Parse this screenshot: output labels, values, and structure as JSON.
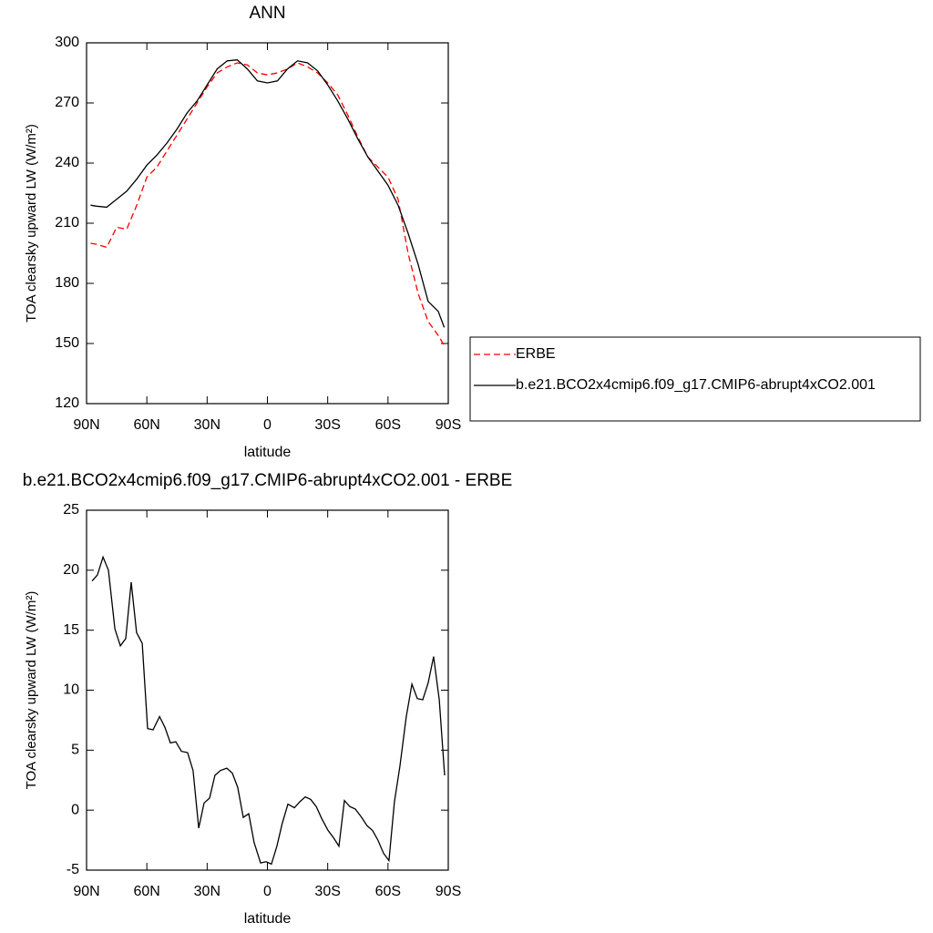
{
  "chart_data": [
    {
      "type": "line",
      "title": "ANN",
      "xlabel": "latitude",
      "ylabel": "TOA clearsky upward LW (W/m²)",
      "x": [
        88,
        85,
        80,
        75,
        70,
        65,
        60,
        55,
        50,
        45,
        40,
        35,
        30,
        25,
        20,
        15,
        10,
        5,
        0,
        -5,
        -10,
        -15,
        -20,
        -25,
        -30,
        -35,
        -40,
        -45,
        -50,
        -55,
        -60,
        -65,
        -70,
        -75,
        -80,
        -85,
        -88
      ],
      "series": [
        {
          "name": "ERBE",
          "color": "#ff0000",
          "style": "dashed",
          "values": [
            200,
            199.5,
            198,
            208,
            207,
            219,
            233,
            238,
            246,
            254,
            262,
            270,
            278,
            285,
            288,
            290,
            289,
            285,
            284,
            285,
            287,
            290,
            288,
            285,
            280,
            274,
            264,
            253,
            243,
            238,
            233,
            222,
            195,
            175,
            161,
            154,
            149
          ]
        },
        {
          "name": "b.e21.BCO2x4cmip6.f09_g17.CMIP6-abrupt4xCO2.001",
          "color": "#000000",
          "style": "solid",
          "values": [
            219,
            218.5,
            218,
            222,
            226,
            232,
            239,
            244,
            250,
            257,
            265,
            271,
            279,
            287,
            291,
            291.5,
            287,
            281,
            280,
            281,
            287,
            291,
            290,
            286,
            279,
            271,
            262,
            252,
            243,
            236,
            229,
            219,
            205,
            189.5,
            171,
            166,
            158
          ]
        }
      ],
      "xlim": [
        90,
        -90
      ],
      "xticks": [
        {
          "value": 90,
          "label": "90N"
        },
        {
          "value": 60,
          "label": "60N"
        },
        {
          "value": 30,
          "label": "30N"
        },
        0,
        {
          "value": -30,
          "label": "30S"
        },
        {
          "value": -60,
          "label": "60S"
        },
        {
          "value": -90,
          "label": "90S"
        }
      ],
      "ylim": [
        120,
        300
      ],
      "yticks": [
        120,
        150,
        180,
        210,
        240,
        270,
        300
      ],
      "legend": "right"
    },
    {
      "type": "line",
      "title": "b.e21.BCO2x4cmip6.f09_g17.CMIP6-abrupt4xCO2.001 - ERBE",
      "xlabel": "latitude",
      "ylabel": "TOA clearsky upward LW (W/m²)",
      "x": [
        87.3,
        84.6,
        81.8,
        79.1,
        75.9,
        73.2,
        70.5,
        67.8,
        65.1,
        62.3,
        59.6,
        56.9,
        53.7,
        51.0,
        48.3,
        45.6,
        42.8,
        39.7,
        37.0,
        34.2,
        31.5,
        28.8,
        26.1,
        23.4,
        20.2,
        17.5,
        14.8,
        12.0,
        9.3,
        6.6,
        3.4,
        0.7,
        -2.0,
        -4.7,
        -7.4,
        -10.2,
        -13.4,
        -16.1,
        -18.8,
        -21.5,
        -24.3,
        -27.0,
        -30.2,
        -32.9,
        -35.6,
        -38.3,
        -41.0,
        -43.7,
        -46.9,
        -49.6,
        -52.3,
        -55.0,
        -57.8,
        -60.5,
        -63.2,
        -65.9,
        -69.1,
        -71.9,
        -74.6,
        -77.3,
        -80.0,
        -82.7,
        -85.5,
        -88.2
      ],
      "values": [
        19.1,
        19.6,
        21.1,
        20.0,
        15.1,
        13.7,
        14.3,
        19.0,
        14.8,
        13.9,
        6.8,
        6.7,
        7.8,
        6.9,
        5.6,
        5.7,
        4.9,
        4.8,
        3.3,
        -1.5,
        0.6,
        1.0,
        2.9,
        3.3,
        3.5,
        3.1,
        1.9,
        -0.6,
        -0.3,
        -2.7,
        -4.4,
        -4.3,
        -4.5,
        -3.0,
        -1.1,
        0.5,
        0.2,
        0.7,
        1.1,
        0.9,
        0.3,
        -0.7,
        -1.7,
        -2.3,
        -3.0,
        0.8,
        0.3,
        0.1,
        -0.6,
        -1.3,
        -1.7,
        -2.5,
        -3.6,
        -4.2,
        0.7,
        3.6,
        7.8,
        10.5,
        9.3,
        9.2,
        10.6,
        12.8,
        9.2,
        2.9
      ],
      "color": "#000000",
      "xlim": [
        90,
        -90
      ],
      "xticks": [
        {
          "value": 90,
          "label": "90N"
        },
        {
          "value": 60,
          "label": "60N"
        },
        {
          "value": 30,
          "label": "30N"
        },
        0,
        {
          "value": -30,
          "label": "30S"
        },
        {
          "value": -60,
          "label": "60S"
        },
        {
          "value": -90,
          "label": "90S"
        }
      ],
      "ylim": [
        -5,
        25
      ],
      "yticks": [
        -5,
        0,
        5,
        10,
        15,
        20,
        25
      ]
    }
  ]
}
